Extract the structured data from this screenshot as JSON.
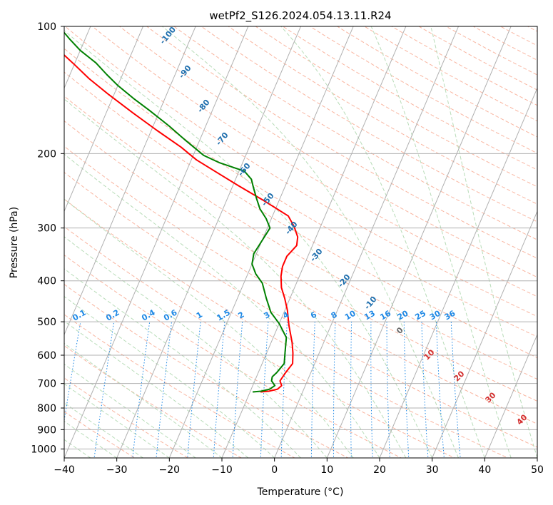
{
  "chart_data": {
    "type": "line",
    "title": "wetPf2_S126.2024.054.13.11.R24",
    "xlabel": "Temperature (°C)",
    "ylabel": "Pressure (hPa)",
    "xlim": [
      -40,
      50
    ],
    "ylim": [
      1050,
      100
    ],
    "y_scale": "log",
    "x_ticks": [
      -40,
      -30,
      -20,
      -10,
      0,
      10,
      20,
      30,
      40,
      50
    ],
    "x_tick_labels": [
      "−40",
      "−30",
      "−20",
      "−10",
      "0",
      "10",
      "20",
      "30",
      "40",
      "50"
    ],
    "y_ticks": [
      100,
      200,
      300,
      400,
      500,
      600,
      700,
      800,
      900,
      1000
    ],
    "y_tick_labels": [
      "100",
      "200",
      "300",
      "400",
      "500",
      "600",
      "700",
      "800",
      "900",
      "1000"
    ],
    "skew": 35,
    "grid": true,
    "series": [
      {
        "color": "#ff0000",
        "points": [
          [
            -8,
            733
          ],
          [
            -6.5,
            730
          ],
          [
            -5,
            722
          ],
          [
            -4.5,
            708
          ],
          [
            -5.2,
            690
          ],
          [
            -4.8,
            660
          ],
          [
            -4.2,
            628
          ],
          [
            -5,
            593
          ],
          [
            -6,
            560
          ],
          [
            -8,
            510
          ],
          [
            -9.5,
            470
          ],
          [
            -11,
            440
          ],
          [
            -12.5,
            415
          ],
          [
            -13.5,
            390
          ],
          [
            -14,
            370
          ],
          [
            -14,
            350
          ],
          [
            -13,
            330
          ],
          [
            -13.5,
            315
          ],
          [
            -15,
            298
          ],
          [
            -17,
            281
          ],
          [
            -23,
            258
          ],
          [
            -29,
            238
          ],
          [
            -34,
            222
          ],
          [
            -39,
            207
          ],
          [
            -43,
            193
          ],
          [
            -49,
            176
          ],
          [
            -55,
            160
          ],
          [
            -61,
            145
          ],
          [
            -66,
            133
          ],
          [
            -70,
            123
          ],
          [
            -74,
            114
          ],
          [
            -76,
            107
          ],
          [
            -78,
            100
          ]
        ]
      },
      {
        "color": "#008000",
        "points": [
          [
            -9.5,
            733
          ],
          [
            -8,
            730
          ],
          [
            -6.5,
            722
          ],
          [
            -5.8,
            708
          ],
          [
            -6.8,
            690
          ],
          [
            -7,
            675
          ],
          [
            -6.5,
            660
          ],
          [
            -5.8,
            628
          ],
          [
            -6.5,
            593
          ],
          [
            -7.5,
            545
          ],
          [
            -10,
            505
          ],
          [
            -12.5,
            475
          ],
          [
            -14.5,
            440
          ],
          [
            -16.5,
            405
          ],
          [
            -18.5,
            385
          ],
          [
            -20,
            365
          ],
          [
            -20.5,
            345
          ],
          [
            -20,
            322
          ],
          [
            -19.5,
            300
          ],
          [
            -21,
            285
          ],
          [
            -23,
            270
          ],
          [
            -24.5,
            255
          ],
          [
            -26,
            240
          ],
          [
            -27,
            230
          ],
          [
            -29,
            220
          ],
          [
            -34.5,
            210
          ],
          [
            -38,
            202
          ],
          [
            -40,
            195
          ],
          [
            -43,
            185
          ],
          [
            -47,
            172
          ],
          [
            -52,
            158
          ],
          [
            -56,
            148
          ],
          [
            -60,
            138
          ],
          [
            -63,
            130
          ],
          [
            -66,
            122
          ],
          [
            -70,
            114
          ],
          [
            -73,
            107
          ],
          [
            -76,
            100
          ]
        ]
      }
    ],
    "dry_adiabat_labels": [
      "-100",
      "-90",
      "-80",
      "-70",
      "-60",
      "-50",
      "-40",
      "-30",
      "-20",
      "-10"
    ],
    "mixing_ratio_labels": [
      "0.1",
      "0.2",
      "0.4",
      "0.6",
      "1",
      "1.5",
      "2",
      "3",
      "4",
      "6",
      "8",
      "10",
      "13",
      "16",
      "20",
      "25",
      "30",
      "36"
    ],
    "moist_adiabat_labels": [
      "0",
      "10",
      "20",
      "30",
      "40"
    ]
  }
}
